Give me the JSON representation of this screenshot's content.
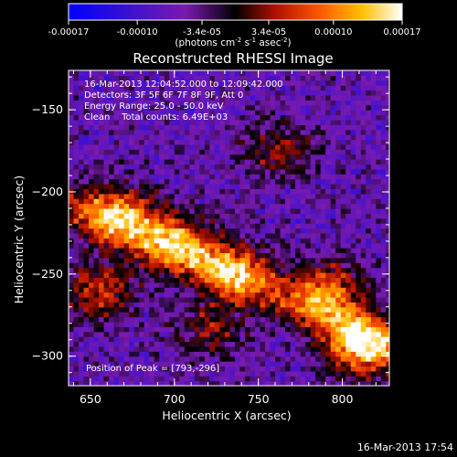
{
  "colorbar": {
    "ticks": [
      "-0.00017",
      "-0.00010",
      "-3.4e-05",
      "3.4e-05",
      "0.00010",
      "0.00017"
    ],
    "unit_main": "(photons cm",
    "unit_sup1": "-2",
    "unit_mid": " s",
    "unit_sup2": "-1",
    "unit_mid2": " asec",
    "unit_sup3": "-2",
    "unit_end": ")"
  },
  "chart_data": {
    "type": "heatmap",
    "title": "Reconstructed RHESSI Image",
    "xlabel": "Heliocentric X (arcsec)",
    "ylabel": "Heliocentric Y (arcsec)",
    "xlim": [
      637,
      828
    ],
    "ylim": [
      -318,
      -126
    ],
    "x_ticks": [
      650,
      700,
      750,
      800
    ],
    "y_ticks": [
      -150,
      -200,
      -250,
      -300
    ],
    "x_tick_labels": [
      "650",
      "700",
      "750",
      "800"
    ],
    "y_tick_labels": [
      "−150",
      "−200",
      "−250",
      "−300"
    ],
    "color_range": [
      -0.00017,
      0.00017
    ],
    "colormap": [
      "#0000ff",
      "#6a0dad",
      "#000000",
      "#cc2200",
      "#ff8800",
      "#ffffff"
    ],
    "bright_regions": [
      {
        "x": 665,
        "y": -215,
        "level": 0.8
      },
      {
        "x": 700,
        "y": -232,
        "level": 0.75
      },
      {
        "x": 735,
        "y": -250,
        "level": 0.7
      },
      {
        "x": 790,
        "y": -262,
        "level": 0.75
      },
      {
        "x": 810,
        "y": -295,
        "level": 1.0
      },
      {
        "x": 652,
        "y": -262,
        "level": 0.6
      },
      {
        "x": 760,
        "y": -175,
        "level": 0.45
      },
      {
        "x": 720,
        "y": -285,
        "level": 0.4
      }
    ],
    "annotations": {
      "time": "16-Mar-2013 12:04:52.000 to 12:09:42.000",
      "detectors": "Detectors: 3F 5F 6F 7F 8F 9F, Att 0",
      "energy": "Energy Range: 25.0 - 50.0 keV",
      "method": "Clean    Total counts: 6.49E+03",
      "peak": "Position of Peak = [793,-296]"
    }
  },
  "footer": {
    "date": "16-Mar-2013 17:54"
  }
}
